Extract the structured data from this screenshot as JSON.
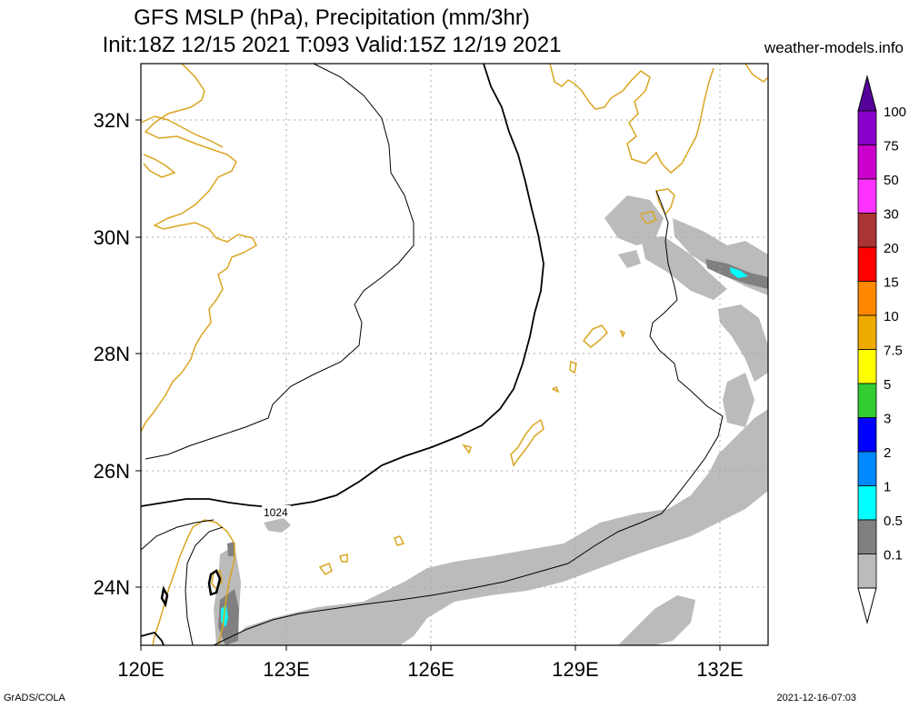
{
  "title": {
    "line1": "GFS MSLP (hPa), Precipitation (mm/3hr)",
    "line2": "Init:18Z 12/15 2021 T:093 Valid:15Z 12/19 2021"
  },
  "site": "weather-models.info",
  "map": {
    "lon_range": [
      120,
      133
    ],
    "lat_range": [
      23,
      33
    ],
    "lon_ticks": [
      "120E",
      "123E",
      "126E",
      "129E",
      "132E"
    ],
    "lat_ticks": [
      "32N",
      "30N",
      "28N",
      "26N",
      "24N"
    ],
    "isobar_label": "1024",
    "colors": {
      "coast": "#daa520",
      "grid": "#aaaaaa",
      "isobar": "#000000"
    }
  },
  "colorbar": {
    "labels": [
      "100",
      "75",
      "50",
      "30",
      "20",
      "15",
      "10",
      "7.5",
      "5",
      "3",
      "2",
      "1",
      "0.5",
      "0.1"
    ],
    "colors": [
      "#8800cc",
      "#cc00cc",
      "#ff33ff",
      "#aa3333",
      "#ff0000",
      "#ff8800",
      "#eeaa00",
      "#ffff00",
      "#33cc33",
      "#0000ff",
      "#0088ff",
      "#00ffff",
      "#808080",
      "#bbbbbb"
    ],
    "top_color": "#550099"
  },
  "footer": {
    "left": "GrADS/COLA",
    "right": "2021-12-16-07:03"
  }
}
